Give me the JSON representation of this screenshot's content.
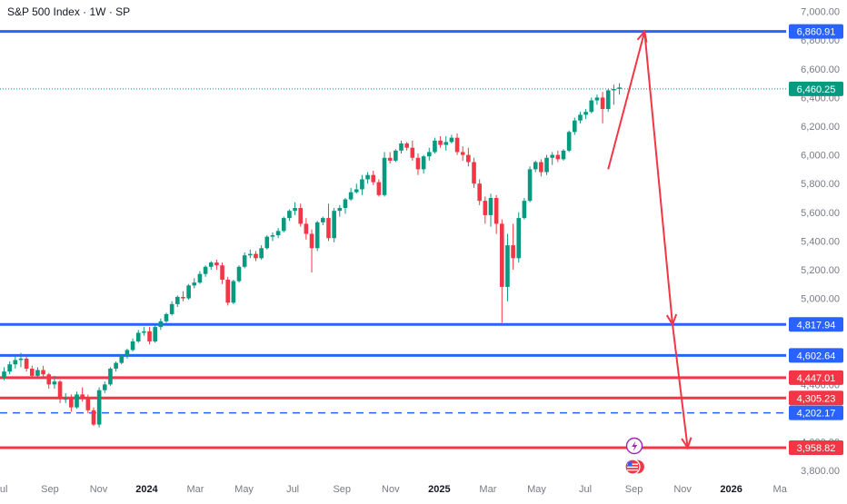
{
  "chart_data": {
    "type": "candlestick",
    "title": "S&P 500 Index · 1W · SP",
    "ylim": [
      3750,
      7080
    ],
    "x_range_weeks": [
      0,
      143
    ],
    "x_ticks": [
      {
        "label": "Jul",
        "week": -0.5,
        "bold": false
      },
      {
        "label": "Sep",
        "week": 8.2,
        "bold": false
      },
      {
        "label": "Nov",
        "week": 16.9,
        "bold": false
      },
      {
        "label": "2024",
        "week": 25.5,
        "bold": true
      },
      {
        "label": "Mar",
        "week": 34.2,
        "bold": false
      },
      {
        "label": "May",
        "week": 42.9,
        "bold": false
      },
      {
        "label": "Jul",
        "week": 51.6,
        "bold": false
      },
      {
        "label": "Sep",
        "week": 60.4,
        "bold": false
      },
      {
        "label": "Nov",
        "week": 69.1,
        "bold": false
      },
      {
        "label": "2025",
        "week": 77.8,
        "bold": true
      },
      {
        "label": "Mar",
        "week": 86.5,
        "bold": false
      },
      {
        "label": "May",
        "week": 95.2,
        "bold": false
      },
      {
        "label": "Jul",
        "week": 103.9,
        "bold": false
      },
      {
        "label": "Sep",
        "week": 112.6,
        "bold": false
      },
      {
        "label": "Nov",
        "week": 121.3,
        "bold": false
      },
      {
        "label": "2026",
        "week": 130.0,
        "bold": true
      },
      {
        "label": "Ma",
        "week": 138.7,
        "bold": false
      }
    ],
    "y_ticks": [
      7000,
      6800,
      6600,
      6400,
      6200,
      6000,
      5800,
      5600,
      5400,
      5200,
      5000,
      4800,
      4600,
      4400,
      4200,
      4000,
      3800
    ],
    "y_tick_labels": [
      "7,000.00",
      "6,800.00",
      "6,600.00",
      "6,400.00",
      "6,200.00",
      "6,000.00",
      "5,800.00",
      "5,600.00",
      "5,400.00",
      "5,200.00",
      "5,000.00",
      "4,800.00",
      "4,600.00",
      "4,400.00",
      "4,200.00",
      "4,000.00",
      "3,800.00"
    ],
    "current_price": {
      "value": 6460.25,
      "label": "6,460.25",
      "color": "#089981"
    },
    "levels": [
      {
        "value": 6860.91,
        "label": "6,860.91",
        "color": "#2962ff",
        "style": "solid"
      },
      {
        "value": 4817.94,
        "label": "4,817.94",
        "color": "#2962ff",
        "style": "solid"
      },
      {
        "value": 4602.64,
        "label": "4,602.64",
        "color": "#2962ff",
        "style": "solid"
      },
      {
        "value": 4447.01,
        "label": "4,447.01",
        "color": "#f23645",
        "style": "solid"
      },
      {
        "value": 4305.23,
        "label": "4,305.23",
        "color": "#f23645",
        "style": "solid"
      },
      {
        "value": 4202.17,
        "label": "4,202.17",
        "color": "#2962ff",
        "style": "dashed"
      },
      {
        "value": 3958.82,
        "label": "3,958.82",
        "color": "#f23645",
        "style": "solid"
      }
    ],
    "projection": {
      "color": "#f23645",
      "points": [
        [
          108,
          5900
        ],
        [
          114.5,
          6860
        ],
        [
          119.5,
          4817.94
        ],
        [
          122.2,
          3958.82
        ]
      ]
    },
    "colors": {
      "up": "#089981",
      "down": "#f23645"
    },
    "candles_ohlc": [
      [
        4450,
        4520,
        4430,
        4490
      ],
      [
        4490,
        4560,
        4470,
        4540
      ],
      [
        4540,
        4600,
        4510,
        4570
      ],
      [
        4570,
        4620,
        4520,
        4580
      ],
      [
        4580,
        4600,
        4490,
        4510
      ],
      [
        4510,
        4530,
        4440,
        4460
      ],
      [
        4460,
        4520,
        4440,
        4500
      ],
      [
        4500,
        4530,
        4450,
        4470
      ],
      [
        4470,
        4480,
        4370,
        4400
      ],
      [
        4400,
        4460,
        4370,
        4420
      ],
      [
        4420,
        4430,
        4270,
        4300
      ],
      [
        4300,
        4340,
        4270,
        4300
      ],
      [
        4300,
        4330,
        4210,
        4240
      ],
      [
        4240,
        4350,
        4230,
        4330
      ],
      [
        4330,
        4380,
        4280,
        4310
      ],
      [
        4310,
        4330,
        4200,
        4220
      ],
      [
        4220,
        4240,
        4110,
        4120
      ],
      [
        4120,
        4380,
        4100,
        4360
      ],
      [
        4360,
        4420,
        4340,
        4400
      ],
      [
        4400,
        4520,
        4390,
        4510
      ],
      [
        4510,
        4560,
        4490,
        4550
      ],
      [
        4550,
        4610,
        4540,
        4600
      ],
      [
        4600,
        4650,
        4580,
        4640
      ],
      [
        4640,
        4720,
        4630,
        4700
      ],
      [
        4700,
        4780,
        4690,
        4760
      ],
      [
        4760,
        4800,
        4740,
        4770
      ],
      [
        4770,
        4800,
        4680,
        4700
      ],
      [
        4700,
        4810,
        4690,
        4800
      ],
      [
        4800,
        4860,
        4780,
        4840
      ],
      [
        4840,
        4900,
        4830,
        4890
      ],
      [
        4890,
        4980,
        4880,
        4960
      ],
      [
        4960,
        5020,
        4940,
        5010
      ],
      [
        5010,
        5050,
        4980,
        5000
      ],
      [
        5000,
        5100,
        4990,
        5090
      ],
      [
        5090,
        5140,
        5070,
        5110
      ],
      [
        5110,
        5190,
        5100,
        5170
      ],
      [
        5170,
        5230,
        5150,
        5220
      ],
      [
        5220,
        5260,
        5200,
        5250
      ],
      [
        5250,
        5270,
        5200,
        5230
      ],
      [
        5230,
        5250,
        5100,
        5130
      ],
      [
        5130,
        5150,
        4950,
        4970
      ],
      [
        4970,
        5130,
        4960,
        5120
      ],
      [
        5120,
        5230,
        5110,
        5220
      ],
      [
        5220,
        5320,
        5210,
        5300
      ],
      [
        5300,
        5340,
        5280,
        5310
      ],
      [
        5310,
        5330,
        5260,
        5280
      ],
      [
        5280,
        5370,
        5270,
        5350
      ],
      [
        5350,
        5440,
        5340,
        5430
      ],
      [
        5430,
        5460,
        5400,
        5440
      ],
      [
        5440,
        5490,
        5420,
        5470
      ],
      [
        5470,
        5570,
        5460,
        5560
      ],
      [
        5560,
        5620,
        5540,
        5610
      ],
      [
        5610,
        5670,
        5580,
        5630
      ],
      [
        5630,
        5660,
        5500,
        5520
      ],
      [
        5520,
        5560,
        5410,
        5450
      ],
      [
        5450,
        5480,
        5180,
        5350
      ],
      [
        5350,
        5540,
        5330,
        5530
      ],
      [
        5530,
        5570,
        5510,
        5560
      ],
      [
        5560,
        5660,
        5400,
        5420
      ],
      [
        5420,
        5630,
        5390,
        5610
      ],
      [
        5610,
        5650,
        5570,
        5630
      ],
      [
        5630,
        5700,
        5590,
        5690
      ],
      [
        5690,
        5770,
        5680,
        5740
      ],
      [
        5740,
        5800,
        5730,
        5760
      ],
      [
        5760,
        5860,
        5720,
        5830
      ],
      [
        5830,
        5880,
        5800,
        5860
      ],
      [
        5860,
        5890,
        5790,
        5810
      ],
      [
        5810,
        5830,
        5710,
        5720
      ],
      [
        5720,
        6020,
        5710,
        5980
      ],
      [
        5980,
        6020,
        5940,
        5960
      ],
      [
        5960,
        6040,
        5950,
        6030
      ],
      [
        6030,
        6100,
        6010,
        6080
      ],
      [
        6080,
        6090,
        6030,
        6050
      ],
      [
        6050,
        6100,
        5960,
        5980
      ],
      [
        5980,
        6010,
        5860,
        5900
      ],
      [
        5900,
        6000,
        5870,
        5990
      ],
      [
        5990,
        6050,
        5960,
        6020
      ],
      [
        6020,
        6120,
        6010,
        6100
      ],
      [
        6100,
        6130,
        6050,
        6070
      ],
      [
        6070,
        6130,
        6030,
        6090
      ],
      [
        6090,
        6140,
        6080,
        6120
      ],
      [
        6120,
        6150,
        6000,
        6020
      ],
      [
        6020,
        6060,
        5960,
        6000
      ],
      [
        6000,
        6050,
        5920,
        5950
      ],
      [
        5950,
        5980,
        5770,
        5800
      ],
      [
        5800,
        5830,
        5650,
        5680
      ],
      [
        5680,
        5710,
        5520,
        5580
      ],
      [
        5580,
        5730,
        5500,
        5700
      ],
      [
        5700,
        5720,
        5450,
        5520
      ],
      [
        5520,
        5550,
        4830,
        5080
      ],
      [
        5080,
        5450,
        4980,
        5370
      ],
      [
        5370,
        5520,
        5200,
        5280
      ],
      [
        5280,
        5600,
        5250,
        5560
      ],
      [
        5560,
        5700,
        5550,
        5680
      ],
      [
        5680,
        5920,
        5670,
        5900
      ],
      [
        5900,
        5960,
        5880,
        5950
      ],
      [
        5950,
        5970,
        5850,
        5880
      ],
      [
        5880,
        6000,
        5860,
        5980
      ],
      [
        5980,
        6020,
        5930,
        6000
      ],
      [
        6000,
        6030,
        5950,
        5970
      ],
      [
        5970,
        6040,
        5960,
        6030
      ],
      [
        6030,
        6170,
        6020,
        6160
      ],
      [
        6160,
        6260,
        6140,
        6240
      ],
      [
        6240,
        6300,
        6220,
        6280
      ],
      [
        6280,
        6320,
        6250,
        6300
      ],
      [
        6300,
        6400,
        6290,
        6380
      ],
      [
        6380,
        6420,
        6350,
        6400
      ],
      [
        6400,
        6440,
        6220,
        6320
      ],
      [
        6320,
        6460,
        6300,
        6450
      ],
      [
        6450,
        6490,
        6350,
        6460
      ],
      [
        6460,
        6500,
        6420,
        6470
      ]
    ]
  }
}
